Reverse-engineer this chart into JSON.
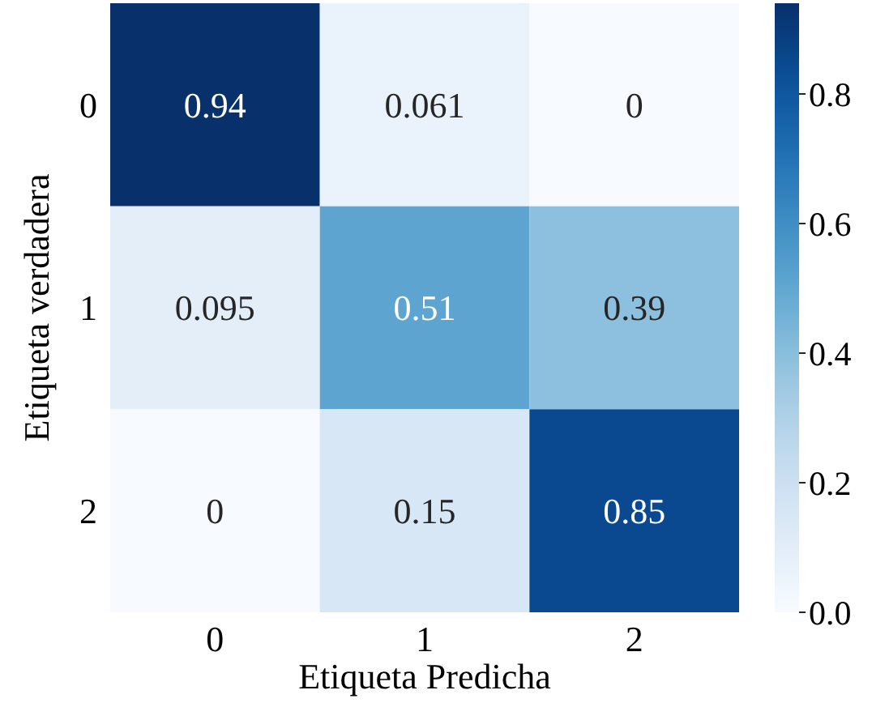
{
  "chart_data": {
    "type": "heatmap",
    "xlabel": "Etiqueta Predicha",
    "ylabel": "Etiqueta verdadera",
    "categories": [
      "0",
      "1",
      "2"
    ],
    "y_categories": [
      "0",
      "1",
      "2"
    ],
    "cells": [
      [
        0.94,
        0.061,
        0
      ],
      [
        0.095,
        0.51,
        0.39
      ],
      [
        0,
        0.15,
        0.85
      ]
    ],
    "data_labels": true,
    "clim": [
      0,
      0.94
    ],
    "cticks": [
      {
        "value": 0,
        "label": "0.0"
      },
      {
        "value": 0.2,
        "label": "0.2"
      },
      {
        "value": 0.4,
        "label": "0.4"
      },
      {
        "value": 0.6,
        "label": "0.6"
      },
      {
        "value": 0.8,
        "label": "0.8"
      }
    ]
  }
}
